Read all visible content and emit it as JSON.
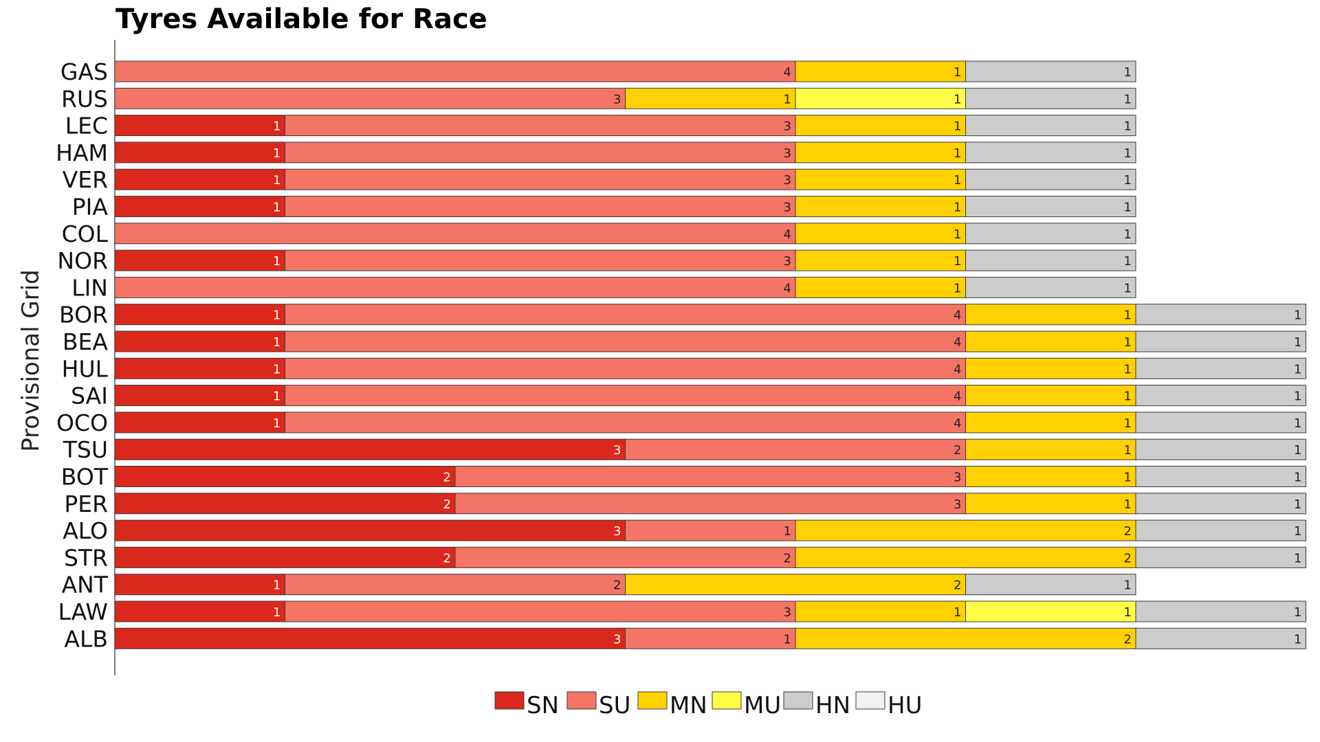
{
  "chart_data": {
    "type": "bar",
    "orientation": "horizontal",
    "stacked": true,
    "title": "Tyres Available for Race",
    "ylabel": "Provisional Grid",
    "xlabel": "",
    "grid": false,
    "legend_position": "bottom-center",
    "categories": [
      "GAS",
      "RUS",
      "LEC",
      "HAM",
      "VER",
      "PIA",
      "COL",
      "NOR",
      "LIN",
      "BOR",
      "BEA",
      "HUL",
      "SAI",
      "OCO",
      "TSU",
      "BOT",
      "PER",
      "ALO",
      "STR",
      "ANT",
      "LAW",
      "ALB"
    ],
    "series": [
      {
        "name": "SN",
        "color": "#da291c",
        "values": [
          0,
          0,
          1,
          1,
          1,
          1,
          0,
          1,
          0,
          1,
          1,
          1,
          1,
          1,
          3,
          2,
          2,
          3,
          2,
          1,
          1,
          3
        ]
      },
      {
        "name": "SU",
        "color": "#f47466",
        "values": [
          4,
          3,
          3,
          3,
          3,
          3,
          4,
          3,
          4,
          4,
          4,
          4,
          4,
          4,
          2,
          3,
          3,
          1,
          2,
          2,
          3,
          1
        ]
      },
      {
        "name": "MN",
        "color": "#ffd100",
        "values": [
          1,
          1,
          1,
          1,
          1,
          1,
          1,
          1,
          1,
          1,
          1,
          1,
          1,
          1,
          1,
          1,
          1,
          2,
          2,
          2,
          1,
          2
        ]
      },
      {
        "name": "MU",
        "color": "#ffff47",
        "values": [
          0,
          1,
          0,
          0,
          0,
          0,
          0,
          0,
          0,
          0,
          0,
          0,
          0,
          0,
          0,
          0,
          0,
          0,
          0,
          0,
          1,
          0
        ]
      },
      {
        "name": "HN",
        "color": "#cccccc",
        "values": [
          1,
          1,
          1,
          1,
          1,
          1,
          1,
          1,
          1,
          1,
          1,
          1,
          1,
          1,
          1,
          1,
          1,
          1,
          1,
          1,
          1,
          1
        ]
      },
      {
        "name": "HU",
        "color": "#f2f2f2",
        "values": [
          0,
          0,
          0,
          0,
          0,
          0,
          0,
          0,
          0,
          0,
          0,
          0,
          0,
          0,
          0,
          0,
          0,
          0,
          0,
          0,
          0,
          0
        ]
      }
    ]
  }
}
